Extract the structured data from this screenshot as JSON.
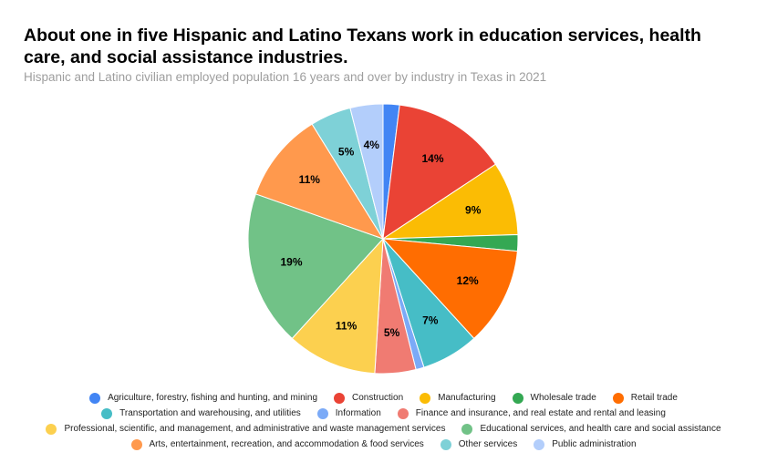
{
  "chart_data": {
    "type": "pie",
    "title": "About one in five Hispanic and Latino Texans work in education services, health care, and social assistance industries.",
    "subtitle": "Hispanic and Latino civilian employed population 16 years and over by industry in Texas in 2021",
    "legend_position": "bottom",
    "slices": [
      {
        "label": "Agriculture, forestry, fishing and hunting, and mining",
        "value": 2,
        "color": "#4285f4",
        "data_label": ""
      },
      {
        "label": "Construction",
        "value": 14,
        "color": "#ea4335",
        "data_label": "14%"
      },
      {
        "label": "Manufacturing",
        "value": 9,
        "color": "#fbbc04",
        "data_label": "9%"
      },
      {
        "label": "Wholesale trade",
        "value": 2,
        "color": "#34a853",
        "data_label": ""
      },
      {
        "label": "Retail trade",
        "value": 12,
        "color": "#ff6d01",
        "data_label": "12%"
      },
      {
        "label": "Transportation and warehousing, and utilities",
        "value": 7,
        "color": "#46bdc6",
        "data_label": "7%"
      },
      {
        "label": "Information",
        "value": 1,
        "color": "#7baaf7",
        "data_label": ""
      },
      {
        "label": "Finance and insurance, and real estate and rental and leasing",
        "value": 5,
        "color": "#f07b72",
        "data_label": "5%"
      },
      {
        "label": "Professional, scientific, and management, and administrative and waste management services",
        "value": 11,
        "color": "#fcd04f",
        "data_label": "11%"
      },
      {
        "label": "Educational services, and health care and social assistance",
        "value": 19,
        "color": "#71c287",
        "data_label": "19%"
      },
      {
        "label": "Arts, entertainment, recreation, and accommodation & food services",
        "value": 11,
        "color": "#ff994d",
        "data_label": "11%"
      },
      {
        "label": "Other services",
        "value": 5,
        "color": "#7ed1d7",
        "data_label": "5%"
      },
      {
        "label": "Public administration",
        "value": 4,
        "color": "#b3cefb",
        "data_label": "4%"
      }
    ],
    "legend_rows": [
      [
        0,
        1,
        2,
        3,
        4
      ],
      [
        5,
        6,
        7
      ],
      [
        8,
        9
      ],
      [
        10,
        11,
        12
      ]
    ]
  }
}
